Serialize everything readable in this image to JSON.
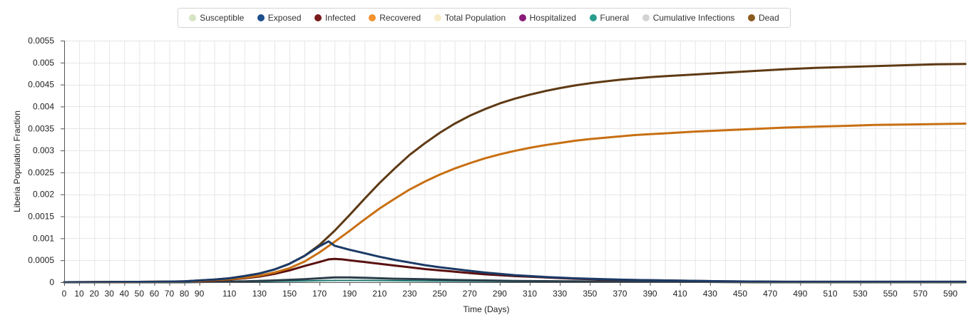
{
  "chart_data": {
    "type": "line",
    "title": "",
    "xlabel": "Time (Days)",
    "ylabel": "Liberia Population Fraction",
    "xlim": [
      0,
      600
    ],
    "ylim": [
      0,
      0.0055
    ],
    "grid": true,
    "legend_position": "top-center",
    "x_ticks": [
      "0",
      "10",
      "20",
      "30",
      "40",
      "50",
      "60",
      "70",
      "80",
      "90",
      "110",
      "130",
      "150",
      "170",
      "190",
      "210",
      "230",
      "250",
      "270",
      "290",
      "310",
      "330",
      "350",
      "370",
      "390",
      "410",
      "430",
      "450",
      "470",
      "490",
      "510",
      "530",
      "550",
      "570",
      "590"
    ],
    "y_ticks": [
      "0",
      "0.0005",
      "0.001",
      "0.0015",
      "0.002",
      "0.0025",
      "0.003",
      "0.0035",
      "0.004",
      "0.0045",
      "0.005",
      "0.0055"
    ],
    "legend": [
      {
        "name": "Susceptible",
        "color": "#d5e4c3"
      },
      {
        "name": "Exposed",
        "color": "#1f4e8c"
      },
      {
        "name": "Infected",
        "color": "#7a1a1a"
      },
      {
        "name": "Recovered",
        "color": "#f0922e"
      },
      {
        "name": "Total Population",
        "color": "#f7ecc6"
      },
      {
        "name": "Hospitalized",
        "color": "#8b1a7a"
      },
      {
        "name": "Funeral",
        "color": "#2a9d8f"
      },
      {
        "name": "Cumulative Infections",
        "color": "#d3d3d3"
      },
      {
        "name": "Dead",
        "color": "#8b5a1f"
      }
    ],
    "series": [
      {
        "name": "Dead",
        "color": "#5e3a14",
        "width": 3,
        "x": [
          0,
          60,
          80,
          90,
          100,
          110,
          120,
          130,
          140,
          150,
          160,
          170,
          180,
          190,
          200,
          210,
          220,
          230,
          240,
          250,
          260,
          270,
          280,
          290,
          300,
          310,
          320,
          330,
          340,
          350,
          360,
          370,
          380,
          390,
          400,
          420,
          440,
          460,
          480,
          500,
          520,
          540,
          560,
          580,
          600
        ],
        "y": [
          0,
          1e-05,
          2e-05,
          4e-05,
          6e-05,
          9e-05,
          0.00014,
          0.0002,
          0.00029,
          0.00042,
          0.0006,
          0.00085,
          0.00117,
          0.00153,
          0.0019,
          0.00226,
          0.00259,
          0.0029,
          0.00316,
          0.0034,
          0.00361,
          0.00379,
          0.00394,
          0.00407,
          0.00418,
          0.00427,
          0.00435,
          0.00442,
          0.00448,
          0.00453,
          0.00457,
          0.00461,
          0.00464,
          0.00467,
          0.00469,
          0.00473,
          0.00477,
          0.00481,
          0.00485,
          0.00488,
          0.0049,
          0.00492,
          0.00494,
          0.00496,
          0.00497
        ]
      },
      {
        "name": "Recovered",
        "color": "#c86f12",
        "width": 3,
        "x": [
          0,
          60,
          80,
          90,
          100,
          110,
          120,
          130,
          140,
          150,
          160,
          170,
          180,
          190,
          200,
          210,
          220,
          230,
          240,
          250,
          260,
          270,
          280,
          290,
          300,
          310,
          320,
          330,
          340,
          350,
          360,
          370,
          380,
          390,
          400,
          420,
          440,
          460,
          480,
          500,
          520,
          540,
          560,
          580,
          600
        ],
        "y": [
          0,
          1e-05,
          2e-05,
          3e-05,
          5e-05,
          7e-05,
          0.0001,
          0.00015,
          0.00022,
          0.00032,
          0.00047,
          0.00068,
          0.00092,
          0.00117,
          0.00143,
          0.00168,
          0.0019,
          0.00211,
          0.00229,
          0.00245,
          0.00259,
          0.00271,
          0.00282,
          0.00291,
          0.00299,
          0.00306,
          0.00312,
          0.00317,
          0.00322,
          0.00326,
          0.00329,
          0.00332,
          0.00335,
          0.00337,
          0.00339,
          0.00343,
          0.00346,
          0.00349,
          0.00352,
          0.00354,
          0.00356,
          0.00358,
          0.00359,
          0.0036,
          0.00361
        ]
      },
      {
        "name": "Exposed",
        "color": "#1b3a66",
        "width": 3,
        "x": [
          0,
          60,
          80,
          90,
          100,
          110,
          120,
          130,
          140,
          150,
          160,
          170,
          176,
          180,
          190,
          200,
          210,
          220,
          230,
          240,
          250,
          260,
          270,
          280,
          290,
          300,
          320,
          340,
          360,
          380,
          400,
          440,
          480,
          520,
          560,
          600
        ],
        "y": [
          0,
          1e-05,
          2e-05,
          4e-05,
          6e-05,
          9e-05,
          0.00014,
          0.0002,
          0.00029,
          0.00042,
          0.0006,
          0.00082,
          0.00093,
          0.00083,
          0.00074,
          0.00066,
          0.00058,
          0.00051,
          0.00045,
          0.00039,
          0.00034,
          0.0003,
          0.00026,
          0.00022,
          0.00019,
          0.00016,
          0.00012,
          9e-05,
          7e-05,
          5e-05,
          4e-05,
          2e-05,
          1e-05,
          1e-05,
          1e-05,
          1e-05
        ]
      },
      {
        "name": "Infected",
        "color": "#5a1010",
        "width": 3,
        "x": [
          0,
          60,
          80,
          90,
          100,
          110,
          120,
          130,
          140,
          150,
          160,
          170,
          176,
          180,
          185,
          190,
          200,
          210,
          220,
          230,
          240,
          250,
          260,
          270,
          280,
          290,
          300,
          320,
          340,
          360,
          380,
          400,
          440,
          480,
          520,
          560,
          600
        ],
        "y": [
          0,
          1e-05,
          1e-05,
          2e-05,
          4e-05,
          6e-05,
          9e-05,
          0.00013,
          0.00019,
          0.00027,
          0.00037,
          0.00046,
          0.00052,
          0.00053,
          0.00052,
          0.0005,
          0.00046,
          0.00042,
          0.00038,
          0.00034,
          0.0003,
          0.00027,
          0.00024,
          0.00021,
          0.00018,
          0.00016,
          0.00014,
          0.00011,
          8e-05,
          6e-05,
          5e-05,
          4e-05,
          2e-05,
          1e-05,
          1e-05,
          1e-05,
          1e-05
        ]
      },
      {
        "name": "Hospitalized",
        "color": "#2a3e4a",
        "width": 3,
        "x": [
          0,
          80,
          100,
          120,
          140,
          160,
          170,
          180,
          190,
          200,
          220,
          240,
          260,
          280,
          300,
          340,
          380,
          420,
          460,
          500,
          540,
          600
        ],
        "y": [
          0,
          0,
          1e-05,
          2e-05,
          4e-05,
          7e-05,
          9e-05,
          0.00011,
          0.00011,
          0.0001,
          8e-05,
          7e-05,
          5e-05,
          4e-05,
          3e-05,
          2e-05,
          1e-05,
          1e-05,
          0,
          0,
          0,
          0
        ]
      },
      {
        "name": "Funeral",
        "color": "#1f7a70",
        "width": 2,
        "x": [
          0,
          80,
          100,
          120,
          140,
          160,
          180,
          200,
          240,
          280,
          320,
          400,
          500,
          600
        ],
        "y": [
          0,
          0,
          5e-06,
          1e-05,
          2e-05,
          3e-05,
          4e-05,
          4e-05,
          3e-05,
          2e-05,
          1e-05,
          5e-06,
          0,
          0
        ]
      }
    ]
  }
}
